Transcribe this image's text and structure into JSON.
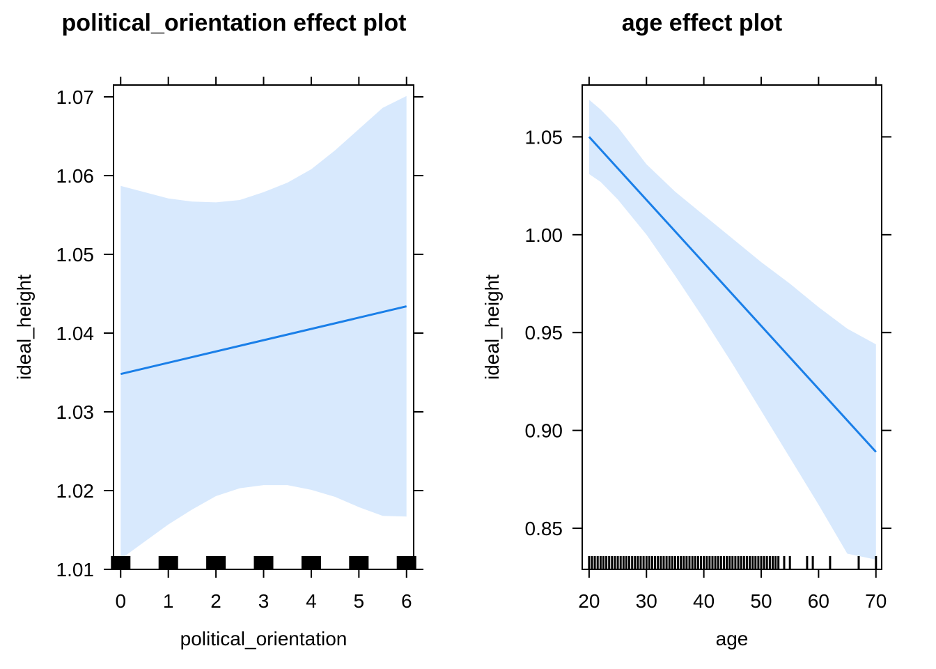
{
  "colors": {
    "line": "#1a7fe8",
    "band": "#d8e9fd",
    "axis": "#000000",
    "rug": "#000000"
  },
  "chart_data": [
    {
      "type": "line",
      "title": "political_orientation effect plot",
      "xlabel": "political_orientation",
      "ylabel": "ideal_height",
      "xlim": [
        -0.15,
        6.15
      ],
      "ylim": [
        1.01,
        1.0715
      ],
      "xticks": [
        "0",
        "1",
        "2",
        "3",
        "4",
        "5",
        "6"
      ],
      "yticks": [
        "1.01",
        "1.02",
        "1.03",
        "1.04",
        "1.05",
        "1.06",
        "1.07"
      ],
      "series": [
        {
          "x": [
            0,
            6
          ],
          "y": [
            1.0348,
            1.0434
          ]
        }
      ],
      "confidence_band": {
        "x": [
          0,
          0.5,
          1,
          1.5,
          2,
          2.5,
          3,
          3.5,
          4,
          4.5,
          5,
          5.5,
          6
        ],
        "lower": [
          1.0113,
          1.0135,
          1.0157,
          1.0176,
          1.0193,
          1.0203,
          1.0207,
          1.0207,
          1.0201,
          1.0192,
          1.0179,
          1.0168,
          1.0167
        ],
        "upper": [
          1.0587,
          1.0579,
          1.0571,
          1.0567,
          1.0566,
          1.0569,
          1.0579,
          1.0591,
          1.0608,
          1.0632,
          1.0659,
          1.0686,
          1.0701
        ]
      },
      "rug": [
        0,
        1,
        2,
        3,
        4,
        5,
        6
      ],
      "grid": false
    },
    {
      "type": "line",
      "title": "age effect plot",
      "xlabel": "age",
      "ylabel": "ideal_height",
      "xlim": [
        18.8,
        71.0
      ],
      "ylim": [
        0.829,
        1.0765
      ],
      "xticks": [
        "20",
        "30",
        "40",
        "50",
        "60",
        "70"
      ],
      "yticks": [
        "0.85",
        "0.90",
        "0.95",
        "1.00",
        "1.05"
      ],
      "series": [
        {
          "x": [
            20,
            70
          ],
          "y": [
            1.05,
            0.889
          ]
        }
      ],
      "confidence_band": {
        "x": [
          20,
          22,
          25,
          30,
          35,
          40,
          45,
          50,
          55,
          60,
          65,
          70
        ],
        "lower": [
          1.031,
          1.027,
          1.018,
          1.0,
          0.979,
          0.957,
          0.934,
          0.91,
          0.886,
          0.862,
          0.837,
          0.834
        ],
        "upper": [
          1.069,
          1.064,
          1.055,
          1.036,
          1.022,
          1.01,
          0.998,
          0.986,
          0.975,
          0.963,
          0.952,
          0.944
        ]
      },
      "rug": [
        20,
        20.5,
        21,
        21.5,
        22,
        22.5,
        23,
        23.5,
        24,
        24.5,
        25,
        25.5,
        26,
        26.5,
        27,
        27.5,
        28,
        28.5,
        29,
        29.5,
        30,
        30.5,
        31,
        31.5,
        32,
        32.5,
        33,
        33.5,
        34,
        34.5,
        35,
        35.5,
        36,
        36.5,
        37,
        37.5,
        38,
        38.5,
        39,
        39.5,
        40,
        40.5,
        41,
        41.5,
        42,
        42.5,
        43,
        43.5,
        44,
        44.5,
        45,
        45.5,
        46,
        46.5,
        47,
        47.5,
        48,
        48.5,
        49,
        49.5,
        50,
        50.5,
        51,
        51.5,
        52,
        52.5,
        53,
        54,
        55,
        58,
        59,
        62,
        67,
        70
      ],
      "grid": false
    }
  ]
}
